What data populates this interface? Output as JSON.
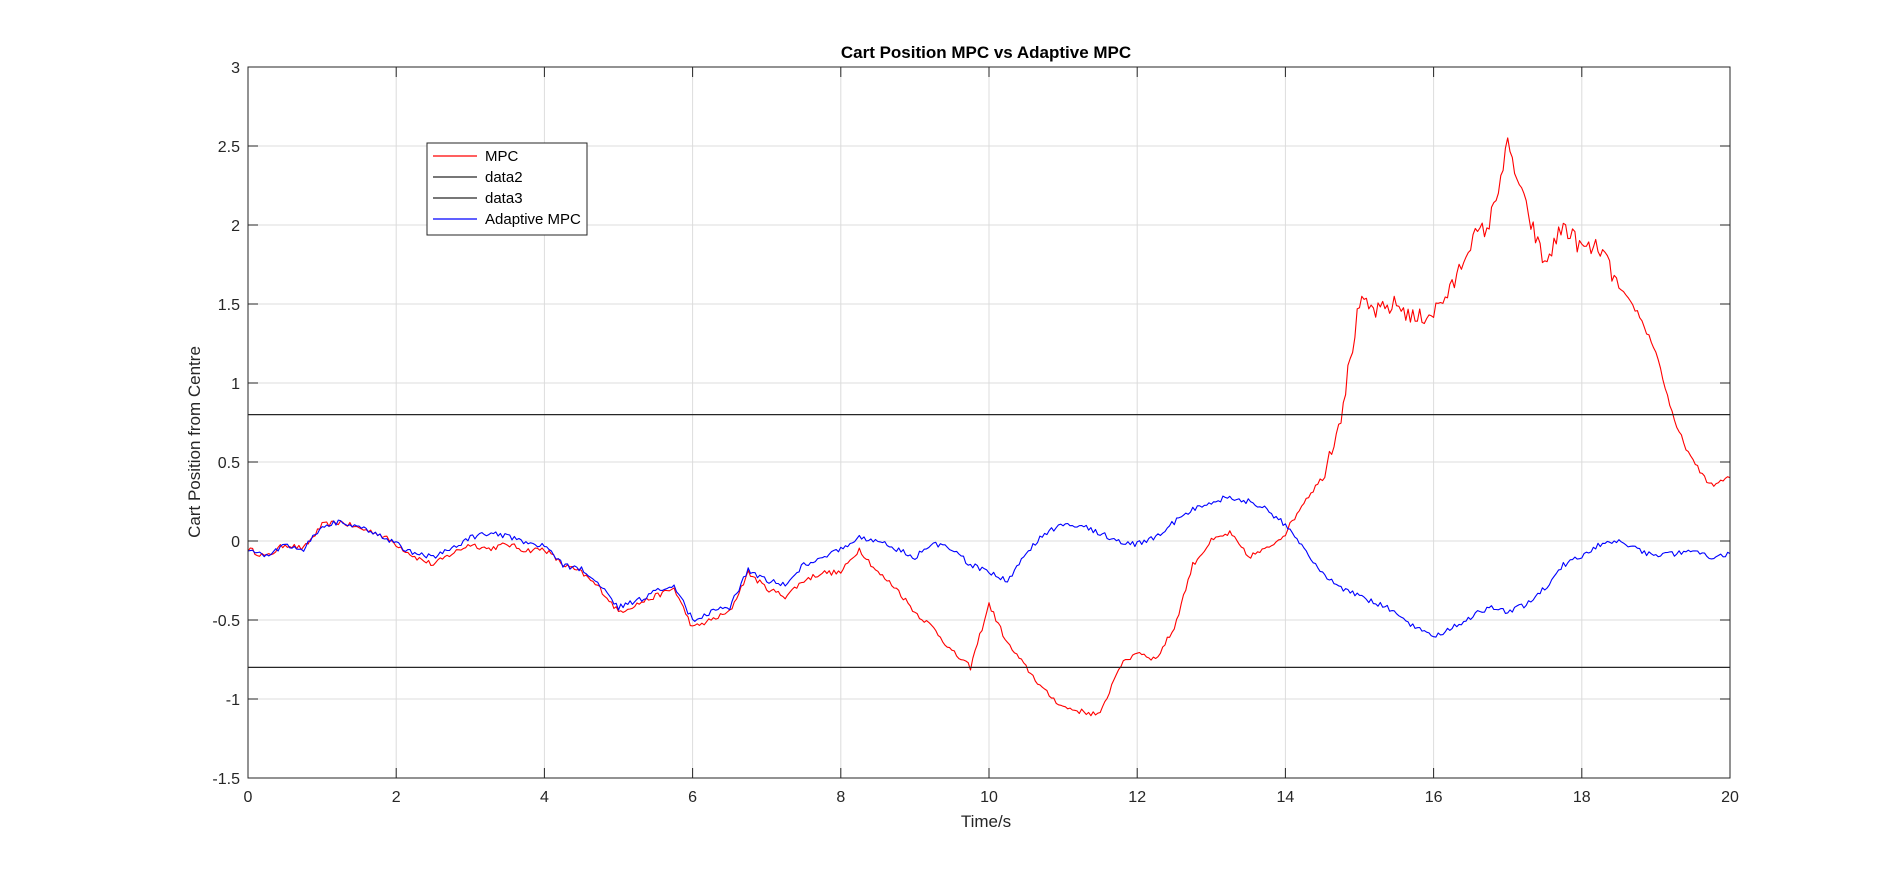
{
  "chart_data": {
    "type": "line",
    "title": "Cart Position MPC vs Adaptive MPC",
    "xlabel": "Time/s",
    "ylabel": "Cart Position from Centre",
    "xlim": [
      0,
      20
    ],
    "ylim": [
      -1.5,
      3
    ],
    "xticks": [
      "0",
      "2",
      "4",
      "6",
      "8",
      "10",
      "12",
      "14",
      "16",
      "18",
      "20"
    ],
    "yticks": [
      "3",
      "2.5",
      "2",
      "1.5",
      "1",
      "0.5",
      "0",
      "-0.5",
      "-1",
      "-1.5"
    ],
    "grid": true,
    "legend_position": "top-left",
    "series": [
      {
        "name": "MPC",
        "color": "#ff0000",
        "x": [
          0,
          0.25,
          0.5,
          0.75,
          1.0,
          1.25,
          1.5,
          1.75,
          2.0,
          2.25,
          2.5,
          2.75,
          3.0,
          3.25,
          3.5,
          3.75,
          4.0,
          4.25,
          4.5,
          4.75,
          5.0,
          5.25,
          5.5,
          5.75,
          6.0,
          6.25,
          6.5,
          6.75,
          7.0,
          7.25,
          7.5,
          7.75,
          8.0,
          8.25,
          8.5,
          8.75,
          9.0,
          9.25,
          9.5,
          9.75,
          10.0,
          10.25,
          10.5,
          10.75,
          11.0,
          11.25,
          11.5,
          11.75,
          12.0,
          12.25,
          12.5,
          12.75,
          13.0,
          13.25,
          13.5,
          13.75,
          14.0,
          14.25,
          14.5,
          14.75,
          15.0,
          15.25,
          15.5,
          15.75,
          16.0,
          16.25,
          16.5,
          16.75,
          17.0,
          17.25,
          17.5,
          17.75,
          18.0,
          18.25,
          18.5,
          18.75,
          19.0,
          19.25,
          19.5,
          19.75,
          20.0
        ],
        "y": [
          -0.05,
          -0.1,
          -0.02,
          -0.05,
          0.1,
          0.12,
          0.08,
          0.05,
          -0.02,
          -0.1,
          -0.15,
          -0.08,
          -0.02,
          -0.05,
          -0.02,
          -0.06,
          -0.05,
          -0.15,
          -0.2,
          -0.3,
          -0.45,
          -0.4,
          -0.35,
          -0.3,
          -0.55,
          -0.5,
          -0.45,
          -0.2,
          -0.3,
          -0.35,
          -0.25,
          -0.2,
          -0.2,
          -0.05,
          -0.2,
          -0.3,
          -0.45,
          -0.55,
          -0.7,
          -0.8,
          -0.4,
          -0.65,
          -0.8,
          -0.95,
          -1.05,
          -1.08,
          -1.1,
          -0.8,
          -0.7,
          -0.75,
          -0.55,
          -0.15,
          0.0,
          0.05,
          -0.1,
          -0.05,
          0.05,
          0.25,
          0.4,
          0.8,
          1.5,
          1.45,
          1.5,
          1.4,
          1.45,
          1.6,
          1.9,
          2.0,
          2.5,
          2.1,
          1.75,
          2.0,
          1.85,
          1.85,
          1.6,
          1.45,
          1.2,
          0.75,
          0.5,
          0.35,
          0.4
        ]
      },
      {
        "name": "data2",
        "color": "#262626",
        "x": [
          0,
          20
        ],
        "y": [
          0.8,
          0.8
        ]
      },
      {
        "name": "data3",
        "color": "#262626",
        "x": [
          0,
          20
        ],
        "y": [
          -0.8,
          -0.8
        ]
      },
      {
        "name": "Adaptive MPC",
        "color": "#0000ff",
        "x": [
          0,
          0.25,
          0.5,
          0.75,
          1.0,
          1.25,
          1.5,
          1.75,
          2.0,
          2.25,
          2.5,
          2.75,
          3.0,
          3.25,
          3.5,
          3.75,
          4.0,
          4.25,
          4.5,
          4.75,
          5.0,
          5.25,
          5.5,
          5.75,
          6.0,
          6.25,
          6.5,
          6.75,
          7.0,
          7.25,
          7.5,
          7.75,
          8.0,
          8.25,
          8.5,
          8.75,
          9.0,
          9.25,
          9.5,
          9.75,
          10.0,
          10.25,
          10.5,
          10.75,
          11.0,
          11.25,
          11.5,
          11.75,
          12.0,
          12.25,
          12.5,
          12.75,
          13.0,
          13.25,
          13.5,
          13.75,
          14.0,
          14.25,
          14.5,
          14.75,
          15.0,
          15.25,
          15.5,
          15.75,
          16.0,
          16.25,
          16.5,
          16.75,
          17.0,
          17.25,
          17.5,
          17.75,
          18.0,
          18.25,
          18.5,
          18.75,
          19.0,
          19.25,
          19.5,
          19.75,
          20.0
        ],
        "y": [
          -0.05,
          -0.1,
          -0.02,
          -0.05,
          0.1,
          0.12,
          0.08,
          0.05,
          -0.02,
          -0.08,
          -0.1,
          -0.05,
          0.02,
          0.05,
          0.03,
          -0.02,
          -0.03,
          -0.15,
          -0.18,
          -0.28,
          -0.42,
          -0.38,
          -0.32,
          -0.28,
          -0.5,
          -0.45,
          -0.42,
          -0.18,
          -0.25,
          -0.28,
          -0.15,
          -0.1,
          -0.05,
          0.02,
          0.0,
          -0.05,
          -0.1,
          -0.02,
          -0.05,
          -0.15,
          -0.2,
          -0.25,
          -0.08,
          0.05,
          0.1,
          0.1,
          0.05,
          0.0,
          -0.02,
          0.02,
          0.12,
          0.2,
          0.25,
          0.28,
          0.25,
          0.2,
          0.1,
          -0.05,
          -0.2,
          -0.3,
          -0.35,
          -0.4,
          -0.45,
          -0.55,
          -0.6,
          -0.55,
          -0.48,
          -0.42,
          -0.45,
          -0.4,
          -0.3,
          -0.15,
          -0.1,
          -0.02,
          0.0,
          -0.05,
          -0.1,
          -0.08,
          -0.05,
          -0.1,
          -0.08
        ]
      }
    ]
  }
}
